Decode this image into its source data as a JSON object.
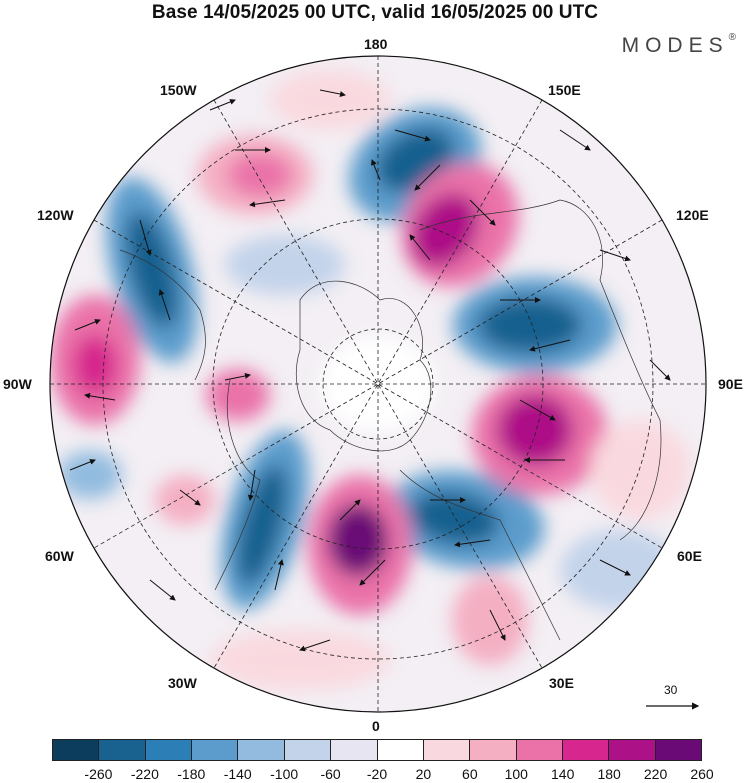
{
  "title": "Base 14/05/2025 00 UTC, valid 16/05/2025 00 UTC",
  "brand": "MODES",
  "brand_mark": "®",
  "longitude_labels": {
    "n180": "180",
    "n150e": "150E",
    "n120e": "120E",
    "n90e": "90E",
    "n60e": "60E",
    "n30e": "30E",
    "n0": "0",
    "n30w": "30W",
    "n60w": "60W",
    "n90w": "90W",
    "n120w": "120W",
    "n150w": "150W"
  },
  "reference_vector": {
    "value": "30"
  },
  "colorbar": {
    "colors": [
      "#0c3d5c",
      "#19618f",
      "#2b7fb6",
      "#5c9ccc",
      "#92bbdf",
      "#c3d3ea",
      "#e6e5f1",
      "#ffffff",
      "#f9d9df",
      "#f4afc3",
      "#ea72a9",
      "#d7268d",
      "#ad1187",
      "#6a0a76"
    ],
    "ticks": [
      "-260",
      "-220",
      "-180",
      "-140",
      "-100",
      "-60",
      "-20",
      "20",
      "60",
      "100",
      "140",
      "180",
      "220",
      "260"
    ]
  }
}
